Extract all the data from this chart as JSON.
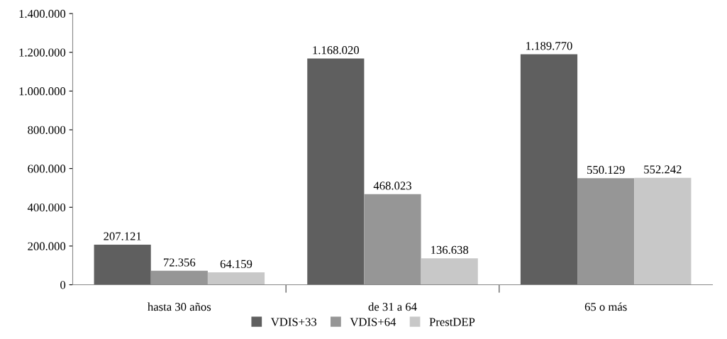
{
  "chart_data": {
    "type": "bar",
    "categories": [
      "hasta 30 años",
      "de 31 a 64",
      "65 o más"
    ],
    "series": [
      {
        "name": "VDIS+33",
        "color": "#5f5f5f",
        "values": [
          207121,
          1168020,
          1189770
        ],
        "value_labels": [
          "207.121",
          "1.168.020",
          "1.189.770"
        ]
      },
      {
        "name": "VDIS+64",
        "color": "#969696",
        "values": [
          72356,
          468023,
          550129
        ],
        "value_labels": [
          "72.356",
          "468.023",
          "550.129"
        ]
      },
      {
        "name": "PrestDEP",
        "color": "#c8c8c8",
        "values": [
          64159,
          136638,
          552242
        ],
        "value_labels": [
          "64.159",
          "136.638",
          "552.242"
        ]
      }
    ],
    "ylim": [
      0,
      1400000
    ],
    "yticks": [
      {
        "value": 0,
        "label": "0"
      },
      {
        "value": 200000,
        "label": "200.000"
      },
      {
        "value": 400000,
        "label": "400.000"
      },
      {
        "value": 600000,
        "label": "600.000"
      },
      {
        "value": 800000,
        "label": "800.000"
      },
      {
        "value": 1000000,
        "label": "1.000.000"
      },
      {
        "value": 1200000,
        "label": "1.200.000"
      },
      {
        "value": 1400000,
        "label": "1.400.000"
      }
    ],
    "grid": false,
    "legend": "bottom"
  }
}
